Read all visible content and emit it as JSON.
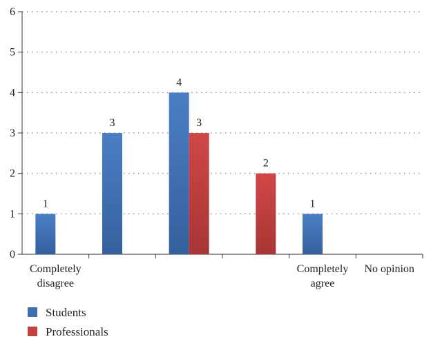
{
  "chart_data": {
    "type": "bar",
    "categories": [
      [
        "Completely",
        "disagree"
      ],
      [],
      [],
      [],
      [
        "Completely",
        "agree"
      ],
      [
        "No opinion"
      ]
    ],
    "series": [
      {
        "name": "Students",
        "color": "#3f6fb0",
        "values": [
          1,
          3,
          4,
          0,
          1,
          0
        ],
        "labels": [
          "1",
          "3",
          "4",
          "",
          "1",
          ""
        ]
      },
      {
        "name": "Professionals",
        "color": "#c24040",
        "values": [
          0,
          0,
          3,
          2,
          0,
          0
        ],
        "labels": [
          "",
          "",
          "3",
          "2",
          "",
          ""
        ]
      }
    ],
    "yticks": [
      0,
      1,
      2,
      3,
      4,
      5,
      6
    ],
    "ylim": [
      0,
      6
    ],
    "grid": true,
    "legend_position": "bottom-left"
  }
}
